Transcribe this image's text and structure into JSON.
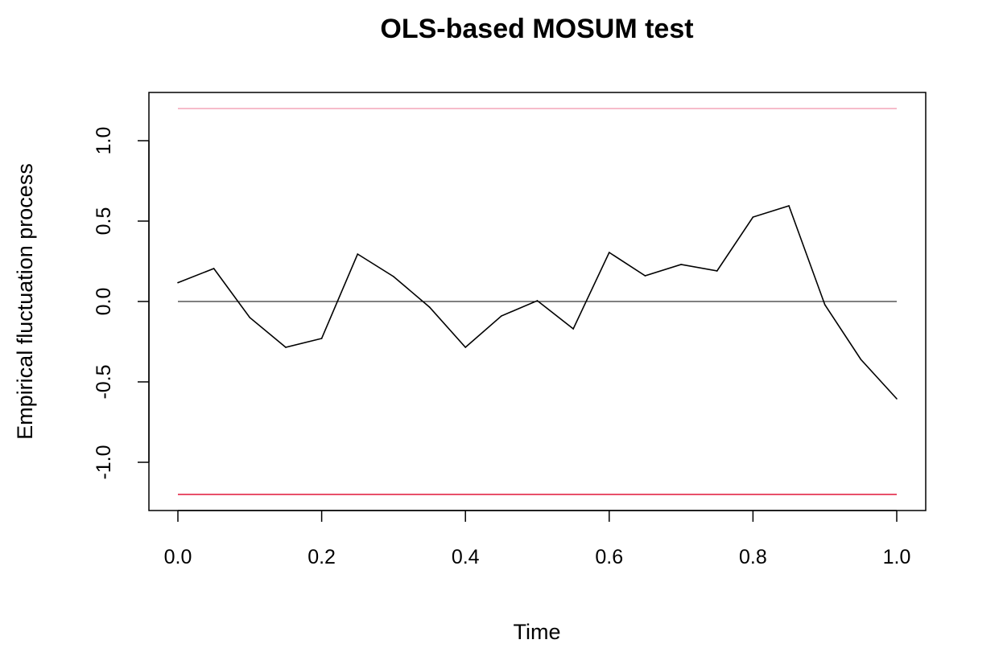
{
  "chart_data": {
    "type": "line",
    "title": "OLS-based MOSUM test",
    "xlabel": "Time",
    "ylabel": "Empirical fluctuation process",
    "xlim": [
      -0.04,
      1.04
    ],
    "ylim": [
      -1.3,
      1.3
    ],
    "xticks": [
      "0.0",
      "0.2",
      "0.4",
      "0.6",
      "0.8",
      "1.0"
    ],
    "yticks": [
      "-1.0",
      "-0.5",
      "0.0",
      "0.5",
      "1.0"
    ],
    "grid": false,
    "x": [
      0.0,
      0.05,
      0.1,
      0.15,
      0.2,
      0.25,
      0.3,
      0.35,
      0.4,
      0.45,
      0.5,
      0.55,
      0.6,
      0.65,
      0.7,
      0.75,
      0.8,
      0.85,
      0.9,
      0.95,
      1.0
    ],
    "series": [
      {
        "values": [
          0.117,
          0.205,
          -0.1,
          -0.285,
          -0.23,
          0.295,
          0.155,
          -0.035,
          -0.285,
          -0.09,
          0.005,
          -0.17,
          0.305,
          0.16,
          0.23,
          0.19,
          0.525,
          0.595,
          -0.02,
          -0.36,
          -0.605
        ],
        "color": "#000000"
      }
    ],
    "reference_lines": [
      {
        "y": 0,
        "color": "#000000"
      },
      {
        "y": 1.2,
        "color": "#f4a6b8"
      },
      {
        "y": -1.2,
        "color": "#e8506a"
      }
    ]
  }
}
